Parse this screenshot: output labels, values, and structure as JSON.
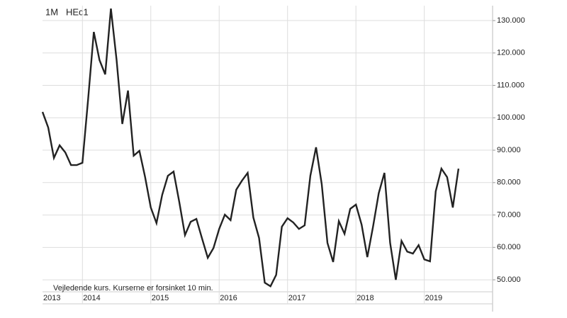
{
  "chart_data": {
    "type": "line",
    "period": "1M",
    "title": "HEc1",
    "note": "Vejledende kurs. Kurserne er forsinket 10 min.",
    "categories": [
      "2013",
      null,
      null,
      null,
      null,
      null,
      null,
      "2014",
      null,
      null,
      null,
      null,
      null,
      null,
      null,
      null,
      null,
      null,
      null,
      "2015",
      null,
      null,
      null,
      null,
      null,
      null,
      null,
      null,
      null,
      null,
      null,
      "2016",
      null,
      null,
      null,
      null,
      null,
      null,
      null,
      null,
      null,
      null,
      null,
      "2017",
      null,
      null,
      null,
      null,
      null,
      null,
      null,
      null,
      null,
      null,
      null,
      "2018",
      null,
      null,
      null,
      null,
      null,
      null,
      null,
      null,
      null,
      null,
      null,
      "2019",
      null,
      null,
      null,
      null,
      null,
      null
    ],
    "series": [
      {
        "name": "HEc1",
        "color": "#222222",
        "values": [
          101.8,
          97,
          87.6,
          91.5,
          89.3,
          85.4,
          85.4,
          86.1,
          105.7,
          126.5,
          117.8,
          113.4,
          133.7,
          117.8,
          98.1,
          108.4,
          88.3,
          89.8,
          81.7,
          72.3,
          67.5,
          76.2,
          82.1,
          83.4,
          74,
          63.8,
          67.9,
          68.8,
          62.7,
          56.8,
          59.8,
          65.7,
          70.1,
          68.4,
          77.8,
          80.6,
          83,
          69.2,
          62.9,
          49.1,
          48,
          51.5,
          66.4,
          69,
          67.7,
          65.7,
          66.8,
          82.1,
          90.9,
          79.5,
          61.4,
          55.5,
          68.1,
          64.2,
          71.9,
          73.2,
          67,
          57,
          66.4,
          76.7,
          83,
          61.4,
          50,
          62,
          58.7,
          58.1,
          60.7,
          56.3,
          55.7,
          77.3,
          84.3,
          81.7,
          72.3,
          84.3
        ]
      }
    ],
    "ylim": [
      46.3,
      134.6
    ],
    "yticks": [
      {
        "value": 50,
        "label": "50.000"
      },
      {
        "value": 60,
        "label": "60.000"
      },
      {
        "value": 70,
        "label": "70.000"
      },
      {
        "value": 80,
        "label": "80.000"
      },
      {
        "value": 90,
        "label": "90.000"
      },
      {
        "value": 100,
        "label": "100.000"
      },
      {
        "value": 110,
        "label": "110.000"
      },
      {
        "value": 120,
        "label": "120.000"
      },
      {
        "value": 130,
        "label": "130.000"
      }
    ],
    "grid": true
  }
}
